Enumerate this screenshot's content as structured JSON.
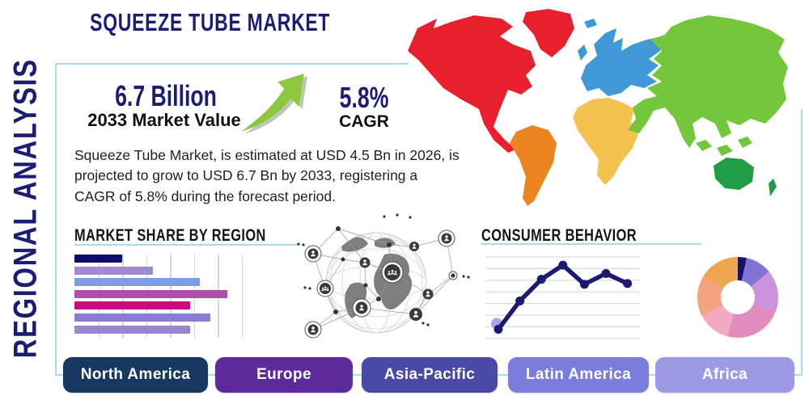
{
  "title": "SQUEEZE TUBE MARKET",
  "side_label": "REGIONAL ANALYSIS",
  "stats": {
    "market_value": "6.7 Billion",
    "market_value_caption": "2033 Market Value",
    "cagr": "5.8%",
    "cagr_caption": "CAGR"
  },
  "description": "Squeeze Tube Market, is estimated at USD 4.5 Bn in 2026, is projected to grow to USD 6.7 Bn by 2033, registering a CAGR of 5.8% during the forecast period.",
  "colors": {
    "navy_text": "#1c1c75",
    "panel_border": "#a9dcea",
    "arrow_green": "#8dc63f",
    "arrow_shadow": "#8a9a7a"
  },
  "chart_data": [
    {
      "type": "bar",
      "orientation": "horizontal",
      "title": "MARKET SHARE BY REGION",
      "values": [
        28,
        46,
        74,
        90,
        68,
        80,
        68
      ],
      "xlabel": "",
      "ylabel": "",
      "xlim": [
        0,
        100
      ],
      "grid": true,
      "colors": [
        "#0d0d6b",
        "#a289d2",
        "#7d9ce2",
        "#b150a8",
        "#c70d7e",
        "#8a7cd4",
        "#9c86d0"
      ]
    },
    {
      "type": "line",
      "title": "CONSUMER BEHAVIOR",
      "x": [
        1,
        2,
        3,
        4,
        5,
        6,
        7
      ],
      "values": [
        11,
        45,
        71,
        88,
        65,
        78,
        66
      ],
      "ylim": [
        0,
        100
      ],
      "grid": true,
      "line_color": "#1b1b6f",
      "marker_color": "#1b1b6f",
      "start_halo_color": "#b4a0e6"
    },
    {
      "type": "pie",
      "title": "",
      "donut": true,
      "segments": [
        {
          "value": 3.5,
          "color": "#191367"
        },
        {
          "value": 10.5,
          "color": "#8173d6"
        },
        {
          "value": 17,
          "color": "#cb92dd"
        },
        {
          "value": 23,
          "color": "#e18cbe"
        },
        {
          "value": 13.5,
          "color": "#f3a9c0"
        },
        {
          "value": 16.5,
          "color": "#f4a381"
        },
        {
          "value": 16,
          "color": "#efa44e"
        }
      ]
    }
  ],
  "map": {
    "regions": [
      {
        "name": "north-america",
        "color": "#e8202e"
      },
      {
        "name": "greenland",
        "color": "#e8202e"
      },
      {
        "name": "south-america",
        "color": "#ec8420"
      },
      {
        "name": "europe",
        "color": "#3e99d6"
      },
      {
        "name": "iceland",
        "color": "#3e99d6"
      },
      {
        "name": "united-kingdom",
        "color": "#3e99d6"
      },
      {
        "name": "africa",
        "color": "#f4c24f"
      },
      {
        "name": "asia",
        "color": "#74c63c"
      },
      {
        "name": "southeast-asia",
        "color": "#74c63c"
      },
      {
        "name": "australia",
        "color": "#1f9e47"
      },
      {
        "name": "new-zealand",
        "color": "#1f9e47"
      }
    ]
  },
  "region_buttons": [
    {
      "label": "North America",
      "color": "#17395f"
    },
    {
      "label": "Europe",
      "color": "#5c2a9b"
    },
    {
      "label": "Asia-Pacific",
      "color": "#4a49a6"
    },
    {
      "label": "Latin America",
      "color": "#7a7ddb"
    },
    {
      "label": "Africa",
      "color": "#9b9ae2"
    }
  ]
}
